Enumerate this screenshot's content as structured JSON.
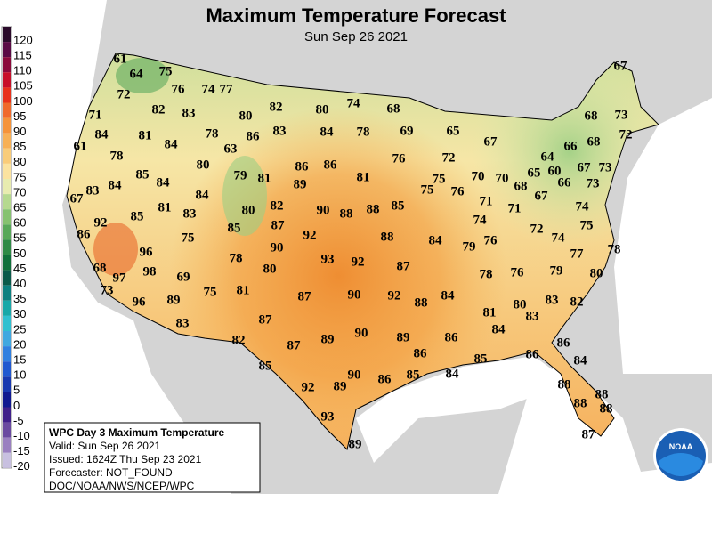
{
  "title": "Maximum Temperature Forecast",
  "subtitle": "Sun Sep 26 2021",
  "legend": {
    "labels": [
      "120",
      "115",
      "110",
      "105",
      "100",
      "95",
      "90",
      "85",
      "80",
      "75",
      "70",
      "65",
      "60",
      "55",
      "50",
      "45",
      "40",
      "35",
      "30",
      "25",
      "20",
      "15",
      "10",
      "5",
      "0",
      "-5",
      "-10",
      "-15",
      "-20"
    ],
    "colors": [
      "#2a0a2a",
      "#5a0a45",
      "#8b0a3b",
      "#c8102a",
      "#e8321c",
      "#f06a2c",
      "#f5933a",
      "#f7b056",
      "#f9cc7a",
      "#fbe3a0",
      "#e8ecb0",
      "#b5d98f",
      "#86c270",
      "#58a859",
      "#2e8a45",
      "#10703a",
      "#0a5a4a",
      "#0c8080",
      "#18a8a8",
      "#30c0d0",
      "#40a8e0",
      "#3080e0",
      "#2058d0",
      "#1838b0",
      "#101890",
      "#40208a",
      "#6a4aa0",
      "#9a80c0",
      "#c8c0e0"
    ]
  },
  "info": {
    "title": "WPC Day 3 Maximum Temperature",
    "lines": [
      "Valid: Sun Sep 26 2021",
      "Issued: 1624Z Thu Sep 23 2021",
      "Forecaster: NOT_FOUND",
      "DOC/NOAA/NWS/NCEP/WPC"
    ]
  },
  "logo": "NOAA",
  "temperatures": [
    61,
    64,
    75,
    76,
    74,
    77,
    72,
    82,
    83,
    80,
    82,
    80,
    74,
    68,
    67,
    71,
    84,
    81,
    84,
    78,
    86,
    83,
    84,
    78,
    69,
    65,
    67,
    68,
    73,
    61,
    78,
    80,
    63,
    86,
    86,
    81,
    76,
    72,
    66,
    68,
    72,
    85,
    84,
    79,
    81,
    89,
    75,
    70,
    70,
    64,
    65,
    60,
    67,
    73,
    67,
    83,
    84,
    84,
    82,
    76,
    68,
    66,
    73,
    85,
    81,
    83,
    80,
    90,
    88,
    88,
    85,
    75,
    71,
    71,
    67,
    74,
    92,
    85,
    87,
    92,
    88,
    84,
    74,
    72,
    74,
    75,
    86,
    75,
    90,
    79,
    76,
    77,
    78,
    96,
    78,
    93,
    92,
    87,
    68,
    98,
    80,
    78,
    76,
    79,
    80,
    97,
    69,
    73,
    75,
    81,
    87,
    90,
    92,
    88,
    84,
    83,
    82,
    96,
    89,
    83,
    87,
    81,
    80,
    83,
    84,
    82,
    87,
    89,
    90,
    89,
    86,
    86,
    85,
    86,
    84,
    85,
    86,
    84,
    92,
    89,
    90,
    86,
    85,
    88,
    88,
    88,
    88,
    93,
    89,
    87
  ]
}
